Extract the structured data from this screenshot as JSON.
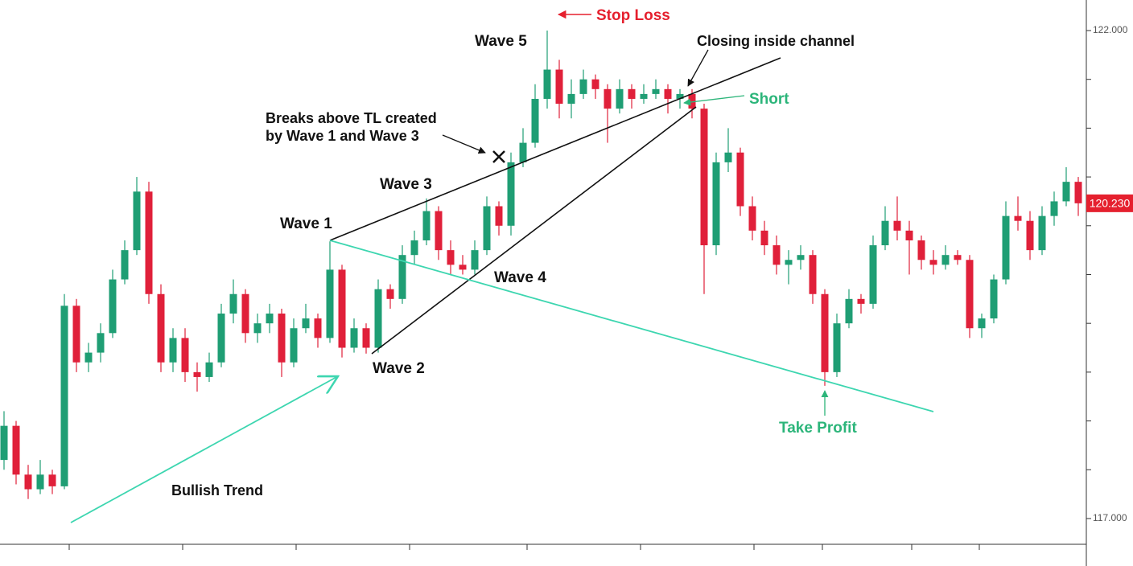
{
  "chart_data": {
    "type": "candlestick",
    "up_color": "#1f9e74",
    "down_color": "#e0203a",
    "ylim": [
      116.736,
      122.313
    ],
    "yticks": [
      {
        "value": 122,
        "label": "122.000"
      },
      {
        "value": 117,
        "label": "117.000"
      }
    ],
    "yminor": [
      121.5,
      121,
      120.5,
      120,
      119.5,
      119,
      118.5,
      118,
      117.5
    ],
    "last_price": {
      "value": 120.23,
      "label": "120.230"
    },
    "annotations": [
      "Stop Loss",
      "Wave 5",
      "Closing inside channel",
      "Short",
      "Breaks above TL created",
      "by Wave 1 and Wave 3",
      "Wave 3",
      "Wave 1",
      "Wave 4",
      "Wave 2",
      "Bullish Trend",
      "Take Profit"
    ],
    "ohlc": [
      [
        117.6,
        118.1,
        117.5,
        117.95
      ],
      [
        117.95,
        118.0,
        117.35,
        117.45
      ],
      [
        117.45,
        117.55,
        117.2,
        117.3
      ],
      [
        117.3,
        117.6,
        117.25,
        117.45
      ],
      [
        117.45,
        117.5,
        117.25,
        117.33
      ],
      [
        117.33,
        119.3,
        117.3,
        119.18
      ],
      [
        119.18,
        119.25,
        118.5,
        118.6
      ],
      [
        118.6,
        118.8,
        118.5,
        118.7
      ],
      [
        118.7,
        119.0,
        118.6,
        118.9
      ],
      [
        118.9,
        119.55,
        118.85,
        119.45
      ],
      [
        119.45,
        119.85,
        119.4,
        119.75
      ],
      [
        119.75,
        120.5,
        119.7,
        120.35
      ],
      [
        120.35,
        120.45,
        119.2,
        119.3
      ],
      [
        119.3,
        119.4,
        118.5,
        118.6
      ],
      [
        118.6,
        118.95,
        118.5,
        118.85
      ],
      [
        118.85,
        118.95,
        118.4,
        118.5
      ],
      [
        118.5,
        118.6,
        118.3,
        118.45
      ],
      [
        118.45,
        118.7,
        118.4,
        118.6
      ],
      [
        118.6,
        119.2,
        118.55,
        119.1
      ],
      [
        119.1,
        119.45,
        119.0,
        119.3
      ],
      [
        119.3,
        119.35,
        118.8,
        118.9
      ],
      [
        118.9,
        119.1,
        118.8,
        119.0
      ],
      [
        119.0,
        119.2,
        118.9,
        119.1
      ],
      [
        119.1,
        119.15,
        118.45,
        118.6
      ],
      [
        118.6,
        119.05,
        118.55,
        118.95
      ],
      [
        118.95,
        119.2,
        118.9,
        119.05
      ],
      [
        119.05,
        119.1,
        118.75,
        118.85
      ],
      [
        118.85,
        119.84,
        118.8,
        119.55
      ],
      [
        119.55,
        119.6,
        118.65,
        118.75
      ],
      [
        118.75,
        119.05,
        118.7,
        118.95
      ],
      [
        118.95,
        119.0,
        118.69,
        118.75
      ],
      [
        118.75,
        119.45,
        118.7,
        119.35
      ],
      [
        119.35,
        119.4,
        119.15,
        119.25
      ],
      [
        119.25,
        119.8,
        119.2,
        119.7
      ],
      [
        119.7,
        119.95,
        119.6,
        119.85
      ],
      [
        119.85,
        120.28,
        119.8,
        120.15
      ],
      [
        120.15,
        120.2,
        119.65,
        119.75
      ],
      [
        119.75,
        119.85,
        119.5,
        119.6
      ],
      [
        119.6,
        119.7,
        119.5,
        119.55
      ],
      [
        119.55,
        119.85,
        119.5,
        119.75
      ],
      [
        119.75,
        120.3,
        119.7,
        120.2
      ],
      [
        120.2,
        120.25,
        119.9,
        120.0
      ],
      [
        120.0,
        120.75,
        119.9,
        120.65
      ],
      [
        120.65,
        121.0,
        120.6,
        120.85
      ],
      [
        120.85,
        121.45,
        120.8,
        121.3
      ],
      [
        121.3,
        122.0,
        121.2,
        121.6
      ],
      [
        121.6,
        121.7,
        121.1,
        121.25
      ],
      [
        121.25,
        121.5,
        121.1,
        121.35
      ],
      [
        121.35,
        121.6,
        121.3,
        121.5
      ],
      [
        121.5,
        121.55,
        121.3,
        121.4
      ],
      [
        121.4,
        121.45,
        120.85,
        121.2
      ],
      [
        121.2,
        121.5,
        121.15,
        121.4
      ],
      [
        121.4,
        121.45,
        121.2,
        121.3
      ],
      [
        121.3,
        121.45,
        121.25,
        121.35
      ],
      [
        121.35,
        121.5,
        121.3,
        121.4
      ],
      [
        121.4,
        121.45,
        121.15,
        121.3
      ],
      [
        121.3,
        121.4,
        121.2,
        121.35
      ],
      [
        121.35,
        121.4,
        121.1,
        121.2
      ],
      [
        121.2,
        121.25,
        119.3,
        119.8
      ],
      [
        119.8,
        120.75,
        119.7,
        120.65
      ],
      [
        120.65,
        121.0,
        120.55,
        120.75
      ],
      [
        120.75,
        120.8,
        120.1,
        120.2
      ],
      [
        120.2,
        120.3,
        119.85,
        119.95
      ],
      [
        119.95,
        120.05,
        119.7,
        119.8
      ],
      [
        119.8,
        119.9,
        119.5,
        119.6
      ],
      [
        119.6,
        119.75,
        119.4,
        119.65
      ],
      [
        119.65,
        119.8,
        119.55,
        119.7
      ],
      [
        119.7,
        119.75,
        119.2,
        119.3
      ],
      [
        119.3,
        119.35,
        118.36,
        118.5
      ],
      [
        118.5,
        119.1,
        118.45,
        119.0
      ],
      [
        119.0,
        119.35,
        118.95,
        119.25
      ],
      [
        119.25,
        119.3,
        119.1,
        119.2
      ],
      [
        119.2,
        119.9,
        119.15,
        119.8
      ],
      [
        119.8,
        120.2,
        119.75,
        120.05
      ],
      [
        120.05,
        120.3,
        119.85,
        119.95
      ],
      [
        119.95,
        120.05,
        119.5,
        119.85
      ],
      [
        119.85,
        119.9,
        119.55,
        119.65
      ],
      [
        119.65,
        119.75,
        119.5,
        119.6
      ],
      [
        119.6,
        119.8,
        119.55,
        119.7
      ],
      [
        119.7,
        119.75,
        119.6,
        119.65
      ],
      [
        119.65,
        119.7,
        118.85,
        118.95
      ],
      [
        118.95,
        119.1,
        118.85,
        119.05
      ],
      [
        119.05,
        119.5,
        119.0,
        119.45
      ],
      [
        119.45,
        120.25,
        119.4,
        120.1
      ],
      [
        120.1,
        120.3,
        119.95,
        120.05
      ],
      [
        120.05,
        120.15,
        119.65,
        119.75
      ],
      [
        119.75,
        120.2,
        119.7,
        120.1
      ],
      [
        120.1,
        120.35,
        120.0,
        120.25
      ],
      [
        120.25,
        120.6,
        120.2,
        120.45
      ],
      [
        120.45,
        120.5,
        120.1,
        120.23
      ]
    ]
  }
}
